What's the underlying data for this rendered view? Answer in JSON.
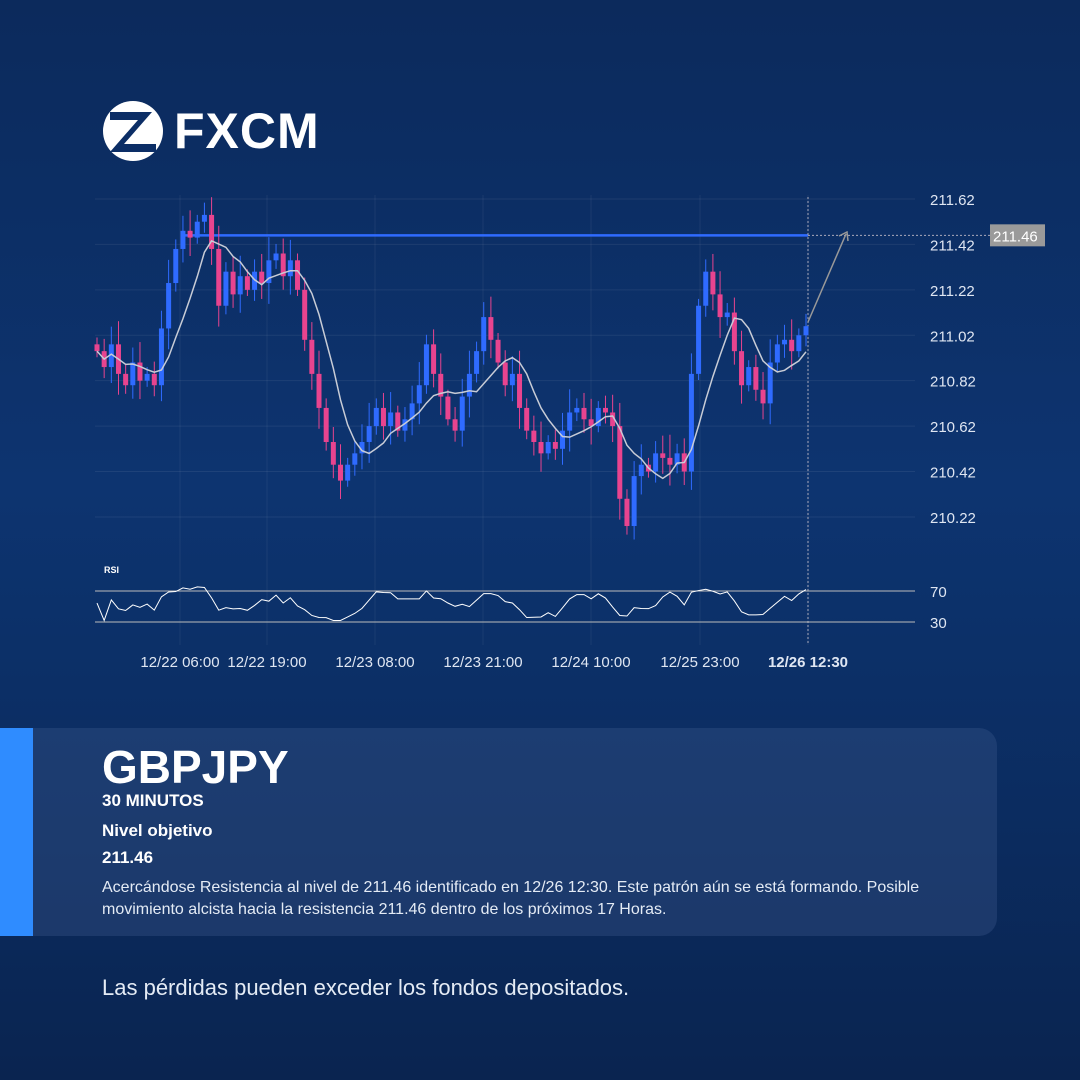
{
  "brand": {
    "name": "FXCM"
  },
  "chart_data": {
    "type": "candlestick",
    "y_ticks": [
      "211.62",
      "211.42",
      "211.22",
      "211.02",
      "210.82",
      "210.62",
      "210.42",
      "210.22"
    ],
    "ylim": [
      210.1,
      211.65
    ],
    "x_ticks": [
      "12/22 06:00",
      "12/22 19:00",
      "12/23 08:00",
      "12/23 21:00",
      "12/24 10:00",
      "12/25 23:00",
      "12/26 12:30"
    ],
    "resistance": 211.46,
    "resistance_label": "211.46",
    "closes": [
      210.95,
      210.88,
      210.98,
      210.85,
      210.8,
      210.9,
      210.82,
      210.85,
      210.8,
      211.05,
      211.25,
      211.4,
      211.48,
      211.45,
      211.52,
      211.55,
      211.4,
      211.15,
      211.3,
      211.2,
      211.28,
      211.22,
      211.3,
      211.25,
      211.35,
      211.38,
      211.28,
      211.35,
      211.22,
      211.0,
      210.85,
      210.7,
      210.55,
      210.45,
      210.38,
      210.45,
      210.5,
      210.55,
      210.62,
      210.7,
      210.62,
      210.68,
      210.6,
      210.65,
      210.72,
      210.8,
      210.98,
      210.85,
      210.75,
      210.65,
      210.6,
      210.75,
      210.85,
      210.95,
      211.1,
      211.0,
      210.9,
      210.8,
      210.85,
      210.7,
      210.6,
      210.55,
      210.5,
      210.55,
      210.52,
      210.6,
      210.68,
      210.7,
      210.65,
      210.62,
      210.7,
      210.68,
      210.62,
      210.3,
      210.18,
      210.4,
      210.45,
      210.42,
      210.5,
      210.48,
      210.45,
      210.5,
      210.42,
      210.85,
      211.15,
      211.3,
      211.2,
      211.1,
      211.12,
      210.95,
      210.8,
      210.88,
      210.78,
      210.72,
      210.9,
      210.98,
      211.0,
      210.95,
      211.02,
      211.06
    ],
    "indicator": {
      "name": "RSI",
      "levels": [
        "70",
        "30"
      ]
    },
    "colors": {
      "up": "#2f6bff",
      "down": "#e8448f",
      "resistance": "#2f6bff"
    }
  },
  "card": {
    "symbol": "GBPJPY",
    "timeframe": "30 MINUTOS",
    "target_label": "Nivel objetivo",
    "target_value": "211.46",
    "description": "Acercándose Resistencia al nivel de 211.46 identificado en 12/26 12:30. Este patrón aún se está formando. Posible movimiento alcista hacia la resistencia 211.46 dentro de los próximos 17 Horas."
  },
  "disclaimer": "Las pérdidas pueden exceder los fondos depositados."
}
